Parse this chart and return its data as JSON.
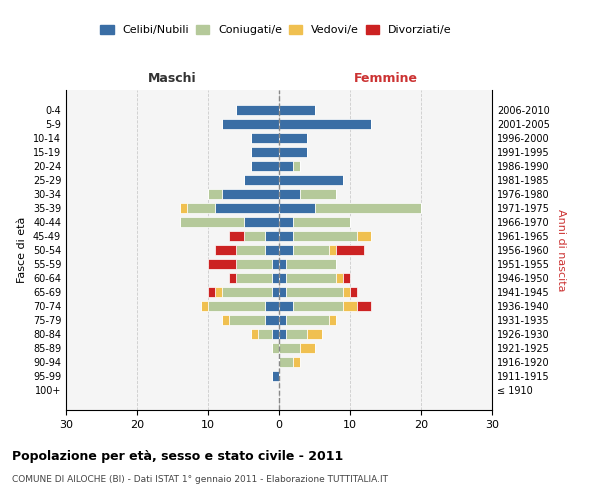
{
  "age_groups": [
    "100+",
    "95-99",
    "90-94",
    "85-89",
    "80-84",
    "75-79",
    "70-74",
    "65-69",
    "60-64",
    "55-59",
    "50-54",
    "45-49",
    "40-44",
    "35-39",
    "30-34",
    "25-29",
    "20-24",
    "15-19",
    "10-14",
    "5-9",
    "0-4"
  ],
  "birth_years": [
    "≤ 1910",
    "1911-1915",
    "1916-1920",
    "1921-1925",
    "1926-1930",
    "1931-1935",
    "1936-1940",
    "1941-1945",
    "1946-1950",
    "1951-1955",
    "1956-1960",
    "1961-1965",
    "1966-1970",
    "1971-1975",
    "1976-1980",
    "1981-1985",
    "1986-1990",
    "1991-1995",
    "1996-2000",
    "2001-2005",
    "2006-2010"
  ],
  "colors": {
    "celibi": "#3a6ea5",
    "coniugati": "#b5c99a",
    "vedovi": "#f0c050",
    "divorziati": "#cc2222"
  },
  "maschi": {
    "celibi": [
      0,
      1,
      0,
      0,
      1,
      2,
      2,
      1,
      1,
      1,
      2,
      2,
      5,
      9,
      8,
      5,
      4,
      4,
      4,
      8,
      6
    ],
    "coniugati": [
      0,
      0,
      0,
      1,
      2,
      5,
      8,
      7,
      5,
      5,
      4,
      3,
      9,
      4,
      2,
      0,
      0,
      0,
      0,
      0,
      0
    ],
    "vedovi": [
      0,
      0,
      0,
      0,
      1,
      1,
      1,
      1,
      0,
      0,
      0,
      0,
      0,
      1,
      0,
      0,
      0,
      0,
      0,
      0,
      0
    ],
    "divorziati": [
      0,
      0,
      0,
      0,
      0,
      0,
      0,
      1,
      1,
      4,
      3,
      2,
      0,
      0,
      0,
      0,
      0,
      0,
      0,
      0,
      0
    ]
  },
  "femmine": {
    "celibi": [
      0,
      0,
      0,
      0,
      1,
      1,
      2,
      1,
      1,
      1,
      2,
      2,
      2,
      5,
      3,
      9,
      2,
      4,
      4,
      13,
      5
    ],
    "coniugati": [
      0,
      0,
      2,
      3,
      3,
      6,
      7,
      8,
      7,
      7,
      5,
      9,
      8,
      15,
      5,
      0,
      1,
      0,
      0,
      0,
      0
    ],
    "vedovi": [
      0,
      0,
      1,
      2,
      2,
      1,
      2,
      1,
      1,
      0,
      1,
      2,
      0,
      0,
      0,
      0,
      0,
      0,
      0,
      0,
      0
    ],
    "divorziati": [
      0,
      0,
      0,
      0,
      0,
      0,
      2,
      1,
      1,
      0,
      4,
      0,
      0,
      0,
      0,
      0,
      0,
      0,
      0,
      0,
      0
    ]
  },
  "xlim": 30,
  "title": "Popolazione per età, sesso e stato civile - 2011",
  "subtitle": "COMUNE DI AILOCHE (BI) - Dati ISTAT 1° gennaio 2011 - Elaborazione TUTTITALIA.IT",
  "ylabel_left": "Fasce di età",
  "ylabel_right": "Anni di nascita",
  "legend_labels": [
    "Celibi/Nubili",
    "Coniugati/e",
    "Vedovi/e",
    "Divorziati/e"
  ],
  "maschi_label": "Maschi",
  "femmine_label": "Femmine",
  "bg_color": "#ffffff",
  "grid_color": "#cccccc"
}
